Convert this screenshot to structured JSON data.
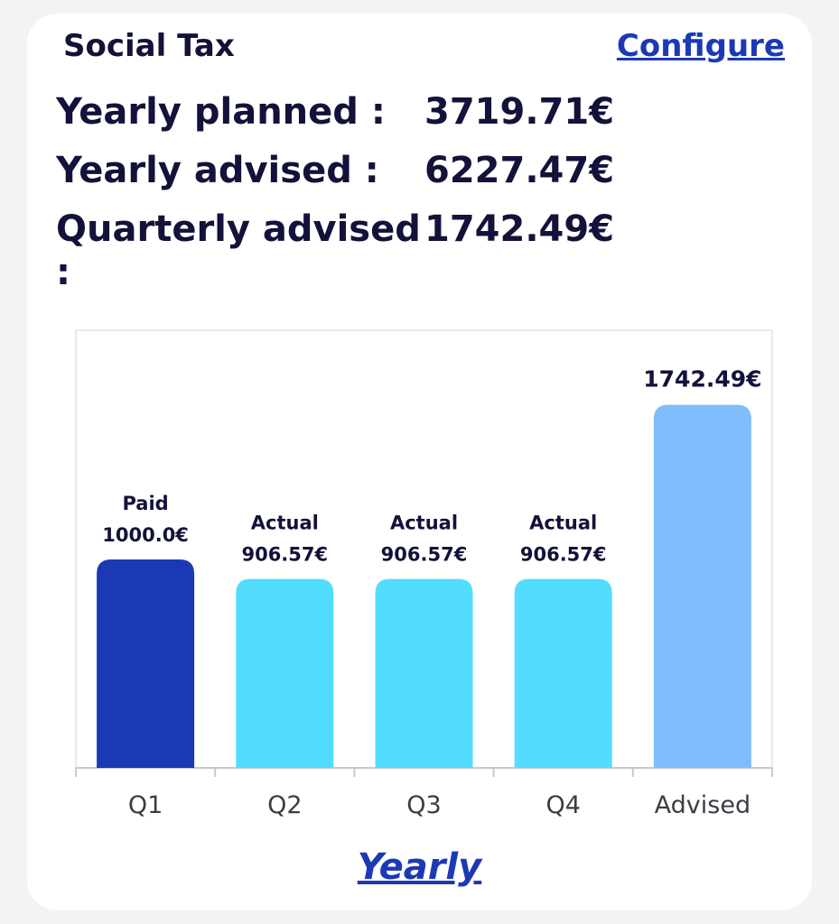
{
  "card": {
    "title": "Social Tax",
    "configure_label": "Configure",
    "summary": [
      {
        "label": "Yearly planned :",
        "value": "3719.71€"
      },
      {
        "label": "Yearly advised :",
        "value": "6227.47€"
      },
      {
        "label": "Quarterly advised",
        "value": "1742.49€"
      }
    ],
    "trailing_colon": ":",
    "yearly_label": "Yearly"
  },
  "colors": {
    "paid": "#1c39b5",
    "actual": "#52dcfe",
    "advised": "#80bbfb",
    "text": "#12123a",
    "link": "#1c39b5"
  },
  "chart_data": {
    "type": "bar",
    "categories": [
      "Q1",
      "Q2",
      "Q3",
      "Q4",
      "Advised"
    ],
    "values": [
      1000.0,
      906.57,
      906.57,
      906.57,
      1742.49
    ],
    "bar_labels": [
      {
        "status": "Paid",
        "amount": "1000.0€"
      },
      {
        "status": "Actual",
        "amount": "906.57€"
      },
      {
        "status": "Actual",
        "amount": "906.57€"
      },
      {
        "status": "Actual",
        "amount": "906.57€"
      },
      {
        "status": "",
        "amount": "1742.49€"
      }
    ],
    "bar_kinds": [
      "paid",
      "actual",
      "actual",
      "actual",
      "advised"
    ],
    "ylim": [
      0,
      2100
    ],
    "grid": false
  }
}
